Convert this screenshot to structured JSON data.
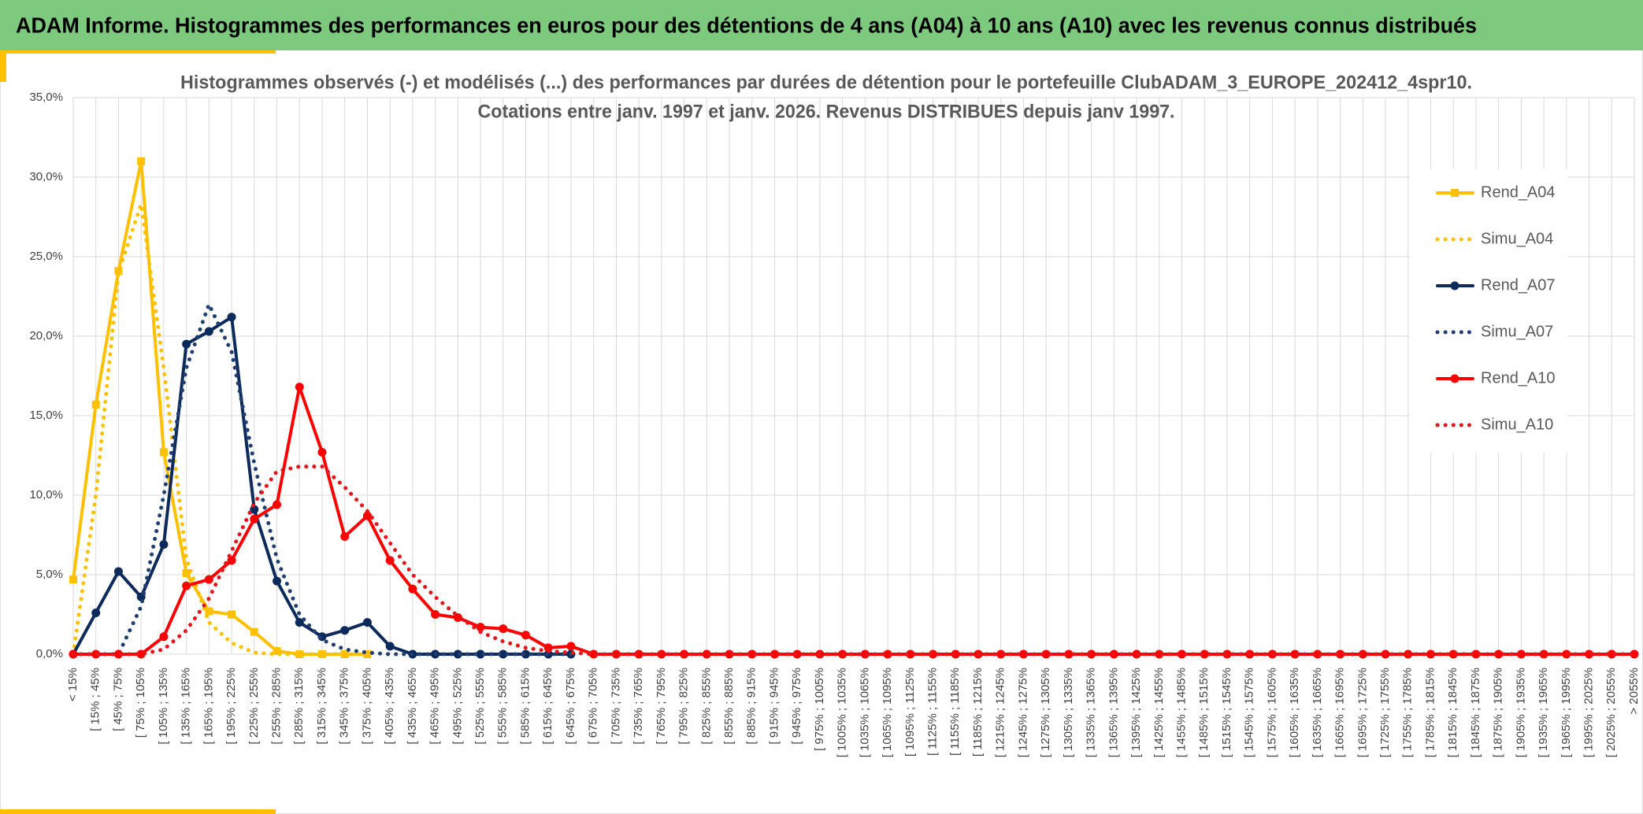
{
  "header": {
    "title": "ADAM Informe. Histogrammes des performances en euros pour des détentions de 4 ans (A04) à 10 ans (A10) avec les revenus connus distribués"
  },
  "chart_data": {
    "type": "line",
    "title": "Histogrammes observés (-) et modélisés (...) des performances par durées de détention pour le portefeuille ClubADAM_3_EUROPE_202412_4spr10.",
    "subtitle": "Cotations entre janv. 1997 et janv. 2026. Revenus DISTRIBUES depuis janv 1997.",
    "categories": [
      "< 15%",
      "[ 15% ; 45%",
      "[ 45% ; 75%",
      "[ 75% ; 105%",
      "[ 105% ; 135%",
      "[ 135% ; 165%",
      "[ 165% ; 195%",
      "[ 195% ; 225%",
      "[ 225% ; 255%",
      "[ 255% ; 285%",
      "[ 285% ; 315%",
      "[ 315% ; 345%",
      "[ 345% ; 375%",
      "[ 375% ; 405%",
      "[ 405% ; 435%",
      "[ 435% ; 465%",
      "[ 465% ; 495%",
      "[ 495% ; 525%",
      "[ 525% ; 555%",
      "[ 555% ; 585%",
      "[ 585% ; 615%",
      "[ 615% ; 645%",
      "[ 645% ; 675%",
      "[ 675% ; 705%",
      "[ 705% ; 735%",
      "[ 735% ; 765%",
      "[ 765% ; 795%",
      "[ 795% ; 825%",
      "[ 825% ; 855%",
      "[ 855% ; 885%",
      "[ 885% ; 915%",
      "[ 915% ; 945%",
      "[ 945% ; 975%",
      "[ 975% ; 1005%",
      "[ 1005% ; 1035%",
      "[ 1035% ; 1065%",
      "[ 1065% ; 1095%",
      "[ 1095% ; 1125%",
      "[ 1125% ; 1155%",
      "[ 1155% ; 1185%",
      "[ 1185% ; 1215%",
      "[ 1215% ; 1245%",
      "[ 1245% ; 1275%",
      "[ 1275% ; 1305%",
      "[ 1305% ; 1335%",
      "[ 1335% ; 1365%",
      "[ 1365% ; 1395%",
      "[ 1395% ; 1425%",
      "[ 1425% ; 1455%",
      "[ 1455% ; 1485%",
      "[ 1485% ; 1515%",
      "[ 1515% ; 1545%",
      "[ 1545% ; 1575%",
      "[ 1575% ; 1605%",
      "[ 1605% ; 1635%",
      "[ 1635% ; 1665%",
      "[ 1665% ; 1695%",
      "[ 1695% ; 1725%",
      "[ 1725% ; 1755%",
      "[ 1755% ; 1785%",
      "[ 1785% ; 1815%",
      "[ 1815% ; 1845%",
      "[ 1845% ; 1875%",
      "[ 1875% ; 1905%",
      "[ 1905% ; 1935%",
      "[ 1935% ; 1965%",
      "[ 1965% ; 1995%",
      "[ 1995% ; 2025%",
      "[ 2025% ; 2055%",
      "> 2055%"
    ],
    "series": [
      {
        "name": "Rend_A04",
        "color": "#ffc000",
        "marker": "square",
        "dashed": false,
        "values": [
          4.7,
          15.7,
          24.1,
          31.0,
          12.7,
          5.1,
          2.7,
          2.5,
          1.4,
          0.2,
          0,
          0,
          0,
          0,
          null,
          null,
          null,
          null,
          null,
          null,
          null,
          null,
          null,
          null,
          null,
          null,
          null,
          null,
          null,
          null,
          null,
          null,
          null,
          null,
          null,
          null,
          null,
          null,
          null,
          null,
          null,
          null,
          null,
          null,
          null,
          null,
          null,
          null,
          null,
          null,
          null,
          null,
          null,
          null,
          null,
          null,
          null,
          null,
          null,
          null,
          null,
          null,
          null,
          null,
          null,
          null,
          null,
          null,
          null,
          null
        ]
      },
      {
        "name": "Simu_A04",
        "color": "#ffc000",
        "marker": "none",
        "dashed": true,
        "values": [
          0,
          10,
          24,
          28.3,
          18,
          6,
          2.0,
          0.7,
          0.1,
          0,
          0,
          0,
          0,
          0,
          null,
          null,
          null,
          null,
          null,
          null,
          null,
          null,
          null,
          null,
          null,
          null,
          null,
          null,
          null,
          null,
          null,
          null,
          null,
          null,
          null,
          null,
          null,
          null,
          null,
          null,
          null,
          null,
          null,
          null,
          null,
          null,
          null,
          null,
          null,
          null,
          null,
          null,
          null,
          null,
          null,
          null,
          null,
          null,
          null,
          null,
          null,
          null,
          null,
          null,
          null,
          null,
          null,
          null,
          null,
          null
        ]
      },
      {
        "name": "Rend_A07",
        "color": "#0c2a5c",
        "marker": "circle",
        "dashed": false,
        "values": [
          0,
          2.6,
          5.2,
          3.6,
          6.9,
          19.5,
          20.3,
          21.2,
          9.1,
          4.6,
          2.0,
          1.1,
          1.5,
          2.0,
          0.5,
          0,
          0,
          0,
          0,
          0,
          0,
          0,
          0,
          null,
          null,
          null,
          null,
          null,
          null,
          null,
          null,
          null,
          null,
          null,
          null,
          null,
          null,
          null,
          null,
          null,
          null,
          null,
          null,
          null,
          null,
          null,
          null,
          null,
          null,
          null,
          null,
          null,
          null,
          null,
          null,
          null,
          null,
          null,
          null,
          null,
          null,
          null,
          null,
          null,
          null,
          null,
          null,
          null,
          null,
          null
        ]
      },
      {
        "name": "Simu_A07",
        "color": "#1f3f73",
        "marker": "none",
        "dashed": true,
        "values": [
          0,
          0,
          0,
          3,
          10,
          18,
          22,
          19,
          12,
          6,
          2.5,
          0.9,
          0.3,
          0.1,
          0,
          0,
          0,
          0,
          0,
          0,
          0,
          0,
          0,
          null,
          null,
          null,
          null,
          null,
          null,
          null,
          null,
          null,
          null,
          null,
          null,
          null,
          null,
          null,
          null,
          null,
          null,
          null,
          null,
          null,
          null,
          null,
          null,
          null,
          null,
          null,
          null,
          null,
          null,
          null,
          null,
          null,
          null,
          null,
          null,
          null,
          null,
          null,
          null,
          null,
          null,
          null,
          null,
          null,
          null,
          null
        ]
      },
      {
        "name": "Rend_A10",
        "color": "#ff0000",
        "marker": "circle",
        "dashed": false,
        "values": [
          0,
          0,
          0,
          0,
          1.1,
          4.3,
          4.7,
          5.9,
          8.5,
          9.4,
          16.8,
          12.7,
          7.4,
          8.7,
          5.9,
          4.1,
          2.5,
          2.3,
          1.7,
          1.6,
          1.2,
          0.4,
          0.5,
          0,
          0,
          0,
          0,
          0,
          0,
          0,
          0,
          0,
          0,
          0,
          0,
          0,
          0,
          0,
          0,
          0,
          0,
          0,
          0,
          0,
          0,
          0,
          0,
          0,
          0,
          0,
          0,
          0,
          0,
          0,
          0,
          0,
          0,
          0,
          0,
          0,
          0,
          0,
          0,
          0,
          0,
          0,
          0,
          0,
          0,
          0
        ]
      },
      {
        "name": "Simu_A10",
        "color": "#e8141c",
        "marker": "none",
        "dashed": true,
        "values": [
          0,
          0,
          0,
          0,
          0.3,
          1.5,
          3.5,
          6.5,
          9.5,
          11.5,
          11.8,
          11.8,
          10.5,
          9,
          7,
          5,
          3.6,
          2.4,
          1.4,
          0.8,
          0.4,
          0.2,
          0.1,
          0,
          0,
          0,
          0,
          0,
          0,
          0,
          0,
          0,
          0,
          0,
          0,
          0,
          0,
          0,
          0,
          0,
          0,
          0,
          0,
          0,
          0,
          0,
          0,
          0,
          0,
          0,
          0,
          0,
          0,
          0,
          0,
          0,
          0,
          0,
          0,
          0,
          0,
          0,
          0,
          0,
          0,
          0,
          0,
          0,
          0,
          0
        ]
      }
    ],
    "ylim": [
      0,
      35
    ],
    "yticks": [
      {
        "value": 0,
        "label": "0,0%"
      },
      {
        "value": 5,
        "label": "5,0%"
      },
      {
        "value": 10,
        "label": "10,0%"
      },
      {
        "value": 15,
        "label": "15,0%"
      },
      {
        "value": 20,
        "label": "20,0%"
      },
      {
        "value": 25,
        "label": "25,0%"
      },
      {
        "value": 30,
        "label": "30,0%"
      },
      {
        "value": 35,
        "label": "35,0%"
      }
    ],
    "grid": true,
    "legend": "right"
  }
}
